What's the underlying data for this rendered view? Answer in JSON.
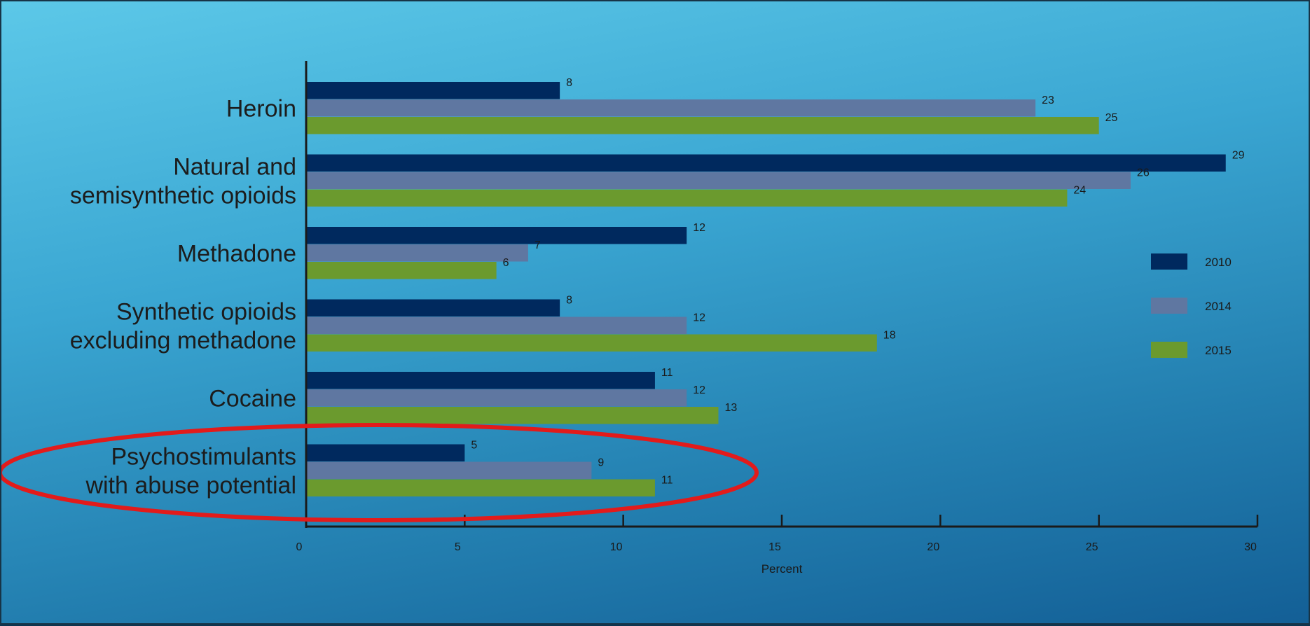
{
  "chart_data": {
    "type": "bar",
    "orientation": "horizontal",
    "title": "",
    "xlabel": "Percent",
    "ylabel": "",
    "xlim": [
      0,
      30
    ],
    "xticks": [
      0,
      5,
      10,
      15,
      20,
      25,
      30
    ],
    "grid": false,
    "legend_position": "right",
    "categories": [
      [
        "Heroin"
      ],
      [
        "Natural and",
        "semisynthetic opioids"
      ],
      [
        "Methadone"
      ],
      [
        "Synthetic opioids",
        "excluding methadone"
      ],
      [
        "Cocaine"
      ],
      [
        "Psychostimulants",
        "with abuse potential"
      ]
    ],
    "series": [
      {
        "name": "2010",
        "color": "#00295e",
        "values": [
          8,
          29,
          12,
          8,
          11,
          5
        ],
        "labels": [
          "8",
          "29",
          "12",
          "8",
          "11",
          "5"
        ]
      },
      {
        "name": "2014",
        "color": "#5f77a1",
        "values": [
          23,
          26,
          7,
          12,
          12,
          9
        ],
        "labels": [
          "23",
          "26",
          "7",
          "12",
          "12",
          "9"
        ]
      },
      {
        "name": "2015",
        "color": "#6b9a2e",
        "values": [
          25,
          24,
          6,
          18,
          13,
          11
        ],
        "labels": [
          "25",
          "24",
          "6",
          "18",
          "13",
          "11"
        ]
      }
    ],
    "annotations": [
      {
        "type": "ellipse",
        "color": "#e21b1b",
        "target_category_index": 5
      }
    ]
  }
}
